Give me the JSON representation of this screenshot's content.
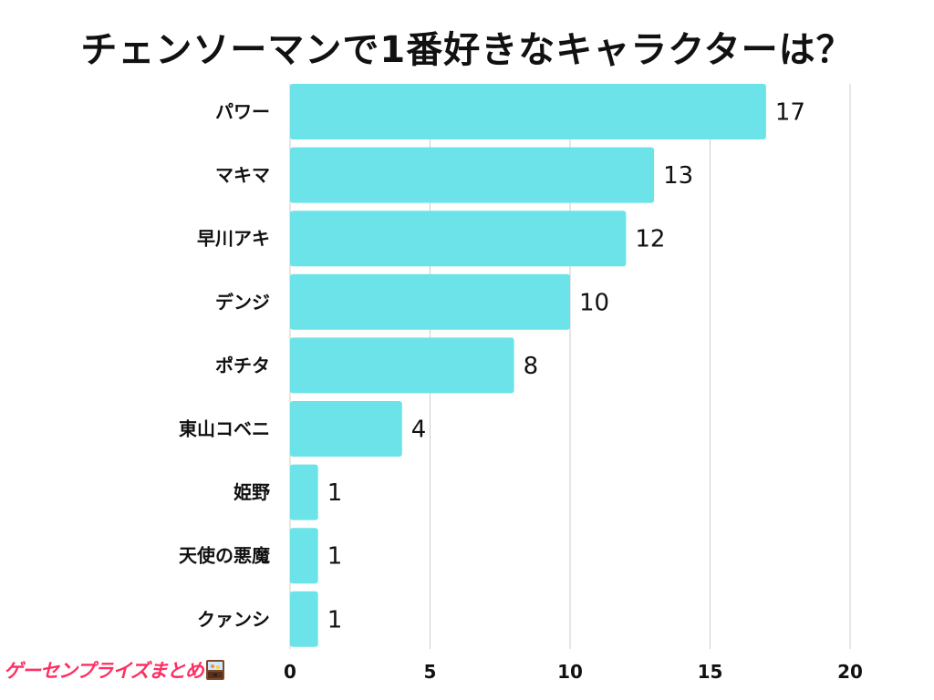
{
  "chart_data": {
    "type": "bar",
    "orientation": "horizontal",
    "title": "チェンソーマンで1番好きなキャラクターは？",
    "categories": [
      "パワー",
      "マキマ",
      "早川アキ",
      "デンジ",
      "ポチタ",
      "東山コベニ",
      "姫野",
      "天使の悪魔",
      "クァンシ"
    ],
    "values": [
      17,
      13,
      12,
      10,
      8,
      4,
      1,
      1,
      1
    ],
    "value_labels": [
      "17",
      "13",
      "12",
      "10",
      "8",
      "4",
      "1",
      "1",
      "1"
    ],
    "xlim": [
      0,
      20
    ],
    "xticks": [
      "0",
      "5",
      "10",
      "15",
      "20"
    ],
    "grid": true,
    "bar_color": "#6ce3e8",
    "xlabel": "",
    "ylabel": ""
  },
  "watermark": {
    "text": "ゲーセンプライズまとめ",
    "icon": "prize-machine-icon"
  }
}
